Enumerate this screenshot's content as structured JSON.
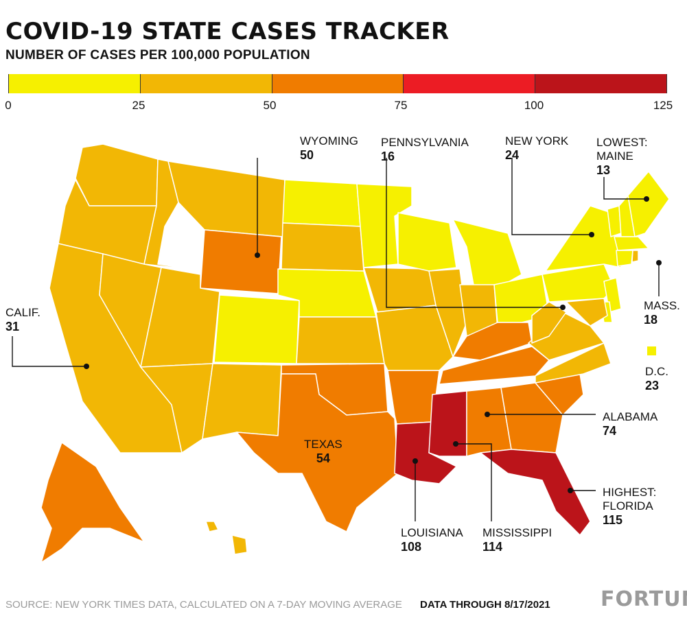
{
  "title": "COVID-19 STATE CASES TRACKER",
  "subtitle": "NUMBER OF CASES PER 100,000 POPULATION",
  "legend": {
    "bins": [
      {
        "from": 0,
        "to": 25,
        "color": "#f6f000"
      },
      {
        "from": 25,
        "to": 50,
        "color": "#f2b705"
      },
      {
        "from": 50,
        "to": 75,
        "color": "#f07c00"
      },
      {
        "from": 75,
        "to": 100,
        "color": "#ec1c24"
      },
      {
        "from": 100,
        "to": 125,
        "color": "#bb141a"
      }
    ],
    "ticks": [
      "0",
      "25",
      "50",
      "75",
      "100",
      "125"
    ]
  },
  "callouts": {
    "wyoming": {
      "name": "WYOMING",
      "value": "50"
    },
    "pennsylvania": {
      "name": "PENNSYLVANIA",
      "value": "16"
    },
    "new_york": {
      "name": "NEW YORK",
      "value": "24"
    },
    "maine": {
      "name1": "LOWEST:",
      "name2": "MAINE",
      "value": "13"
    },
    "mass": {
      "name": "MASS.",
      "value": "18"
    },
    "dc": {
      "name": "D.C.",
      "value": "23"
    },
    "calif": {
      "name": "CALIF.",
      "value": "31"
    },
    "texas": {
      "name": "TEXAS",
      "value": "54"
    },
    "alabama": {
      "name": "ALABAMA",
      "value": "74"
    },
    "florida": {
      "name1": "HIGHEST:",
      "name2": "FLORIDA",
      "value": "115"
    },
    "louisiana": {
      "name": "LOUISIANA",
      "value": "108"
    },
    "mississippi": {
      "name": "MISSISSIPPI",
      "value": "114"
    }
  },
  "footer": {
    "source": "SOURCE: NEW YORK TIMES DATA, CALCULATED ON A 7-DAY MOVING AVERAGE",
    "through": "DATA THROUGH 8/17/2021",
    "brand": "FORTUNE"
  }
}
